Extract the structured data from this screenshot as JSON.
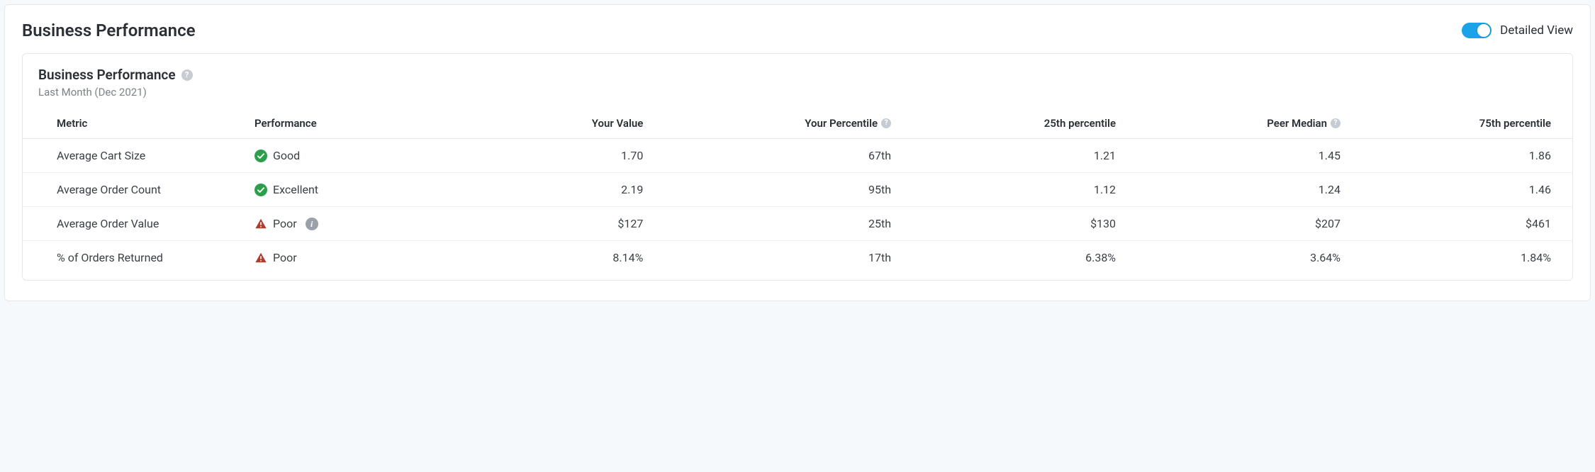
{
  "page": {
    "title": "Business Performance",
    "toggle_label": "Detailed View",
    "toggle_on": true
  },
  "card": {
    "title": "Business Performance",
    "subtitle": "Last Month (Dec 2021)"
  },
  "table": {
    "columns": {
      "metric": "Metric",
      "performance": "Performance",
      "your_value": "Your Value",
      "your_percentile": "Your Percentile",
      "p25": "25th percentile",
      "peer_median": "Peer Median",
      "p75": "75th percentile"
    },
    "rows": [
      {
        "metric": "Average Cart Size",
        "performance": "Good",
        "status": "good",
        "your_value": "1.70",
        "your_percentile": "67th",
        "p25": "1.21",
        "peer_median": "1.45",
        "p75": "1.86",
        "info": false
      },
      {
        "metric": "Average Order Count",
        "performance": "Excellent",
        "status": "good",
        "your_value": "2.19",
        "your_percentile": "95th",
        "p25": "1.12",
        "peer_median": "1.24",
        "p75": "1.46",
        "info": false
      },
      {
        "metric": "Average Order Value",
        "performance": "Poor",
        "status": "poor",
        "your_value": "$127",
        "your_percentile": "25th",
        "p25": "$130",
        "peer_median": "$207",
        "p75": "$461",
        "info": true
      },
      {
        "metric": "% of Orders Returned",
        "performance": "Poor",
        "status": "poor",
        "your_value": "8.14%",
        "your_percentile": "17th",
        "p25": "6.38%",
        "peer_median": "3.64%",
        "p75": "1.84%",
        "info": false
      }
    ]
  },
  "colors": {
    "good": "#2aa04a",
    "poor": "#b23b2e",
    "toggle_on": "#1aa3e8",
    "border": "#e4e8ec",
    "text": "#2a2f36",
    "muted": "#7b828a",
    "help_bg": "#c6ccd2",
    "info_bg": "#9ba1a8",
    "page_bg": "#f6f9fc",
    "card_bg": "#ffffff"
  }
}
